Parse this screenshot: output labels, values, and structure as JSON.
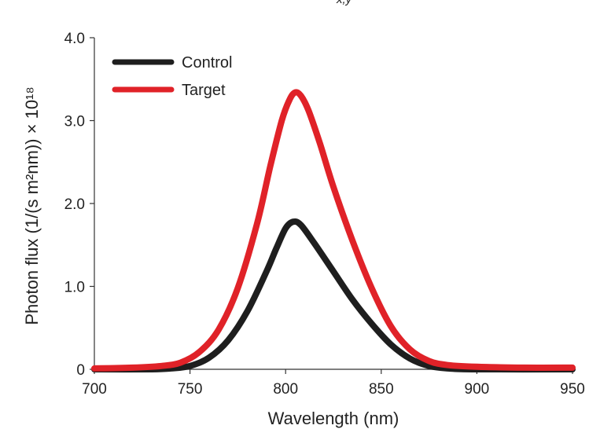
{
  "chart_data": {
    "type": "line",
    "title_fragment": "x,y",
    "xlabel": "Wavelength (nm)",
    "ylabel": "Photon flux (1/(s m²nm)) × 10¹⁸",
    "xlim": [
      700,
      950
    ],
    "ylim": [
      0,
      4.0
    ],
    "x_ticks": [
      700,
      750,
      800,
      850,
      900,
      950
    ],
    "x_tick_labels": [
      "700",
      "750",
      "800",
      "850",
      "900",
      "950"
    ],
    "y_ticks": [
      0,
      1.0,
      2.0,
      3.0,
      4.0
    ],
    "y_tick_labels": [
      "0",
      "1.0",
      "2.0",
      "3.0",
      "4.0"
    ],
    "grid": false,
    "legend_position": "top-left",
    "series": [
      {
        "name": "Control",
        "color": "#1e1e1e",
        "points": [
          [
            700,
            0.0
          ],
          [
            730,
            0.0
          ],
          [
            740,
            0.01
          ],
          [
            750,
            0.04
          ],
          [
            760,
            0.14
          ],
          [
            770,
            0.35
          ],
          [
            780,
            0.7
          ],
          [
            790,
            1.18
          ],
          [
            795,
            1.45
          ],
          [
            800,
            1.7
          ],
          [
            804,
            1.78
          ],
          [
            808,
            1.74
          ],
          [
            815,
            1.52
          ],
          [
            825,
            1.18
          ],
          [
            835,
            0.84
          ],
          [
            845,
            0.55
          ],
          [
            855,
            0.3
          ],
          [
            865,
            0.13
          ],
          [
            875,
            0.04
          ],
          [
            885,
            0.01
          ],
          [
            900,
            0.0
          ],
          [
            950,
            0.0
          ]
        ]
      },
      {
        "name": "Target",
        "color": "#e02228",
        "points": [
          [
            700,
            0.01
          ],
          [
            720,
            0.02
          ],
          [
            735,
            0.04
          ],
          [
            745,
            0.08
          ],
          [
            755,
            0.21
          ],
          [
            765,
            0.48
          ],
          [
            775,
            0.98
          ],
          [
            785,
            1.75
          ],
          [
            792,
            2.45
          ],
          [
            798,
            3.0
          ],
          [
            802,
            3.25
          ],
          [
            805,
            3.34
          ],
          [
            808,
            3.3
          ],
          [
            812,
            3.12
          ],
          [
            818,
            2.72
          ],
          [
            825,
            2.2
          ],
          [
            835,
            1.55
          ],
          [
            845,
            0.98
          ],
          [
            855,
            0.52
          ],
          [
            865,
            0.24
          ],
          [
            875,
            0.1
          ],
          [
            885,
            0.05
          ],
          [
            900,
            0.03
          ],
          [
            925,
            0.02
          ],
          [
            950,
            0.02
          ]
        ]
      }
    ]
  }
}
